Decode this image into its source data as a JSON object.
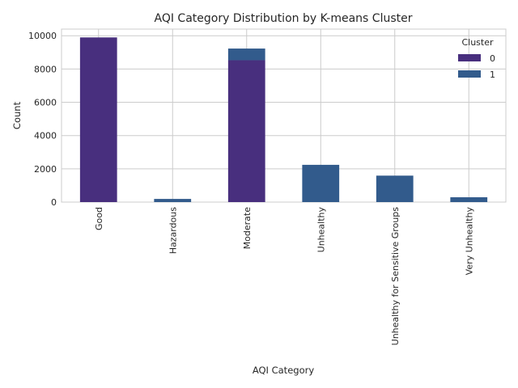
{
  "chart_data": {
    "type": "bar",
    "stacked": true,
    "title": "AQI Category Distribution by K-means Cluster",
    "xlabel": "AQI Category",
    "ylabel": "Count",
    "categories": [
      "Good",
      "Hazardous",
      "Moderate",
      "Unhealthy",
      "Unhealthy for Sensitive Groups",
      "Very Unhealthy"
    ],
    "series": [
      {
        "name": "0",
        "color": "#482f7e",
        "values": [
          9900,
          0,
          8530,
          0,
          0,
          0
        ]
      },
      {
        "name": "1",
        "color": "#325b8c",
        "values": [
          0,
          190,
          700,
          2240,
          1590,
          290
        ]
      }
    ],
    "ylim": [
      0,
      10400
    ],
    "yticks": [
      0,
      2000,
      4000,
      6000,
      8000,
      10000
    ],
    "grid": true,
    "legend": {
      "title": "Cluster",
      "placement": "top-right"
    }
  }
}
